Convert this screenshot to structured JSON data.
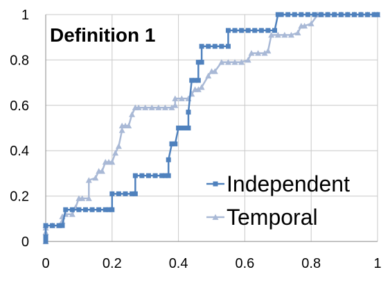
{
  "chart_data": {
    "type": "line",
    "title": "Definition 1",
    "xlabel": "",
    "ylabel": "",
    "xlim": [
      0,
      1
    ],
    "ylim": [
      0,
      1
    ],
    "x_ticks": [
      "0",
      "0.2",
      "0.4",
      "0.6",
      "0.8",
      "1"
    ],
    "y_ticks": [
      "0",
      "0.2",
      "0.4",
      "0.6",
      "0.8",
      "1"
    ],
    "grid": true,
    "legend_position": "bottom-right",
    "series": [
      {
        "name": "Independent",
        "marker": "square",
        "color": "#4f81bd",
        "x": [
          0.0,
          0.0,
          0.0,
          0.02,
          0.04,
          0.05,
          0.06,
          0.08,
          0.1,
          0.12,
          0.14,
          0.16,
          0.18,
          0.19,
          0.2,
          0.2,
          0.22,
          0.24,
          0.26,
          0.27,
          0.27,
          0.29,
          0.31,
          0.33,
          0.35,
          0.36,
          0.37,
          0.37,
          0.38,
          0.38,
          0.39,
          0.4,
          0.41,
          0.42,
          0.43,
          0.43,
          0.44,
          0.45,
          0.46,
          0.46,
          0.47,
          0.47,
          0.49,
          0.51,
          0.53,
          0.55,
          0.55,
          0.57,
          0.59,
          0.61,
          0.63,
          0.65,
          0.67,
          0.69,
          0.7,
          0.71,
          0.71,
          0.73,
          0.75,
          0.77,
          0.79,
          0.81,
          0.83,
          0.85,
          0.87,
          0.89,
          0.91,
          0.93,
          0.95,
          0.97,
          0.99,
          1.0
        ],
        "y": [
          0.0,
          0.02,
          0.07,
          0.07,
          0.07,
          0.07,
          0.14,
          0.14,
          0.14,
          0.14,
          0.14,
          0.14,
          0.14,
          0.14,
          0.14,
          0.21,
          0.21,
          0.21,
          0.21,
          0.21,
          0.29,
          0.29,
          0.29,
          0.29,
          0.29,
          0.29,
          0.29,
          0.36,
          0.43,
          0.43,
          0.43,
          0.5,
          0.5,
          0.5,
          0.5,
          0.57,
          0.71,
          0.71,
          0.71,
          0.79,
          0.79,
          0.86,
          0.86,
          0.86,
          0.86,
          0.86,
          0.93,
          0.93,
          0.93,
          0.93,
          0.93,
          0.93,
          0.93,
          0.93,
          1.0,
          1.0,
          1.0,
          1.0,
          1.0,
          1.0,
          1.0,
          1.0,
          1.0,
          1.0,
          1.0,
          1.0,
          1.0,
          1.0,
          1.0,
          1.0,
          1.0,
          1.0
        ]
      },
      {
        "name": "Temporal",
        "marker": "triangle",
        "color": "#a9b9d6",
        "x": [
          0.0,
          0.0,
          0.0,
          0.0,
          0.02,
          0.04,
          0.05,
          0.05,
          0.06,
          0.08,
          0.09,
          0.1,
          0.11,
          0.13,
          0.13,
          0.15,
          0.16,
          0.17,
          0.18,
          0.19,
          0.2,
          0.21,
          0.22,
          0.23,
          0.23,
          0.24,
          0.25,
          0.26,
          0.27,
          0.27,
          0.28,
          0.3,
          0.32,
          0.34,
          0.36,
          0.38,
          0.39,
          0.39,
          0.41,
          0.43,
          0.44,
          0.45,
          0.46,
          0.47,
          0.49,
          0.5,
          0.51,
          0.53,
          0.55,
          0.57,
          0.59,
          0.61,
          0.62,
          0.64,
          0.66,
          0.67,
          0.68,
          0.7,
          0.72,
          0.74,
          0.76,
          0.77,
          0.78,
          0.8,
          0.82,
          0.83,
          0.85,
          0.87,
          0.89,
          0.91,
          0.93,
          0.95,
          0.97,
          0.99,
          1.0
        ],
        "y": [
          0.0,
          0.04,
          0.06,
          0.07,
          0.07,
          0.07,
          0.09,
          0.11,
          0.12,
          0.12,
          0.15,
          0.19,
          0.19,
          0.19,
          0.27,
          0.28,
          0.31,
          0.31,
          0.35,
          0.35,
          0.35,
          0.39,
          0.42,
          0.49,
          0.51,
          0.51,
          0.51,
          0.56,
          0.59,
          0.59,
          0.59,
          0.59,
          0.59,
          0.59,
          0.59,
          0.59,
          0.6,
          0.63,
          0.63,
          0.63,
          0.65,
          0.67,
          0.67,
          0.68,
          0.73,
          0.75,
          0.75,
          0.79,
          0.79,
          0.79,
          0.79,
          0.8,
          0.83,
          0.83,
          0.83,
          0.84,
          0.91,
          0.91,
          0.91,
          0.91,
          0.92,
          0.95,
          0.95,
          0.96,
          1.0,
          1.0,
          1.0,
          1.0,
          1.0,
          1.0,
          1.0,
          1.0,
          1.0,
          1.0,
          1.0
        ]
      }
    ]
  }
}
